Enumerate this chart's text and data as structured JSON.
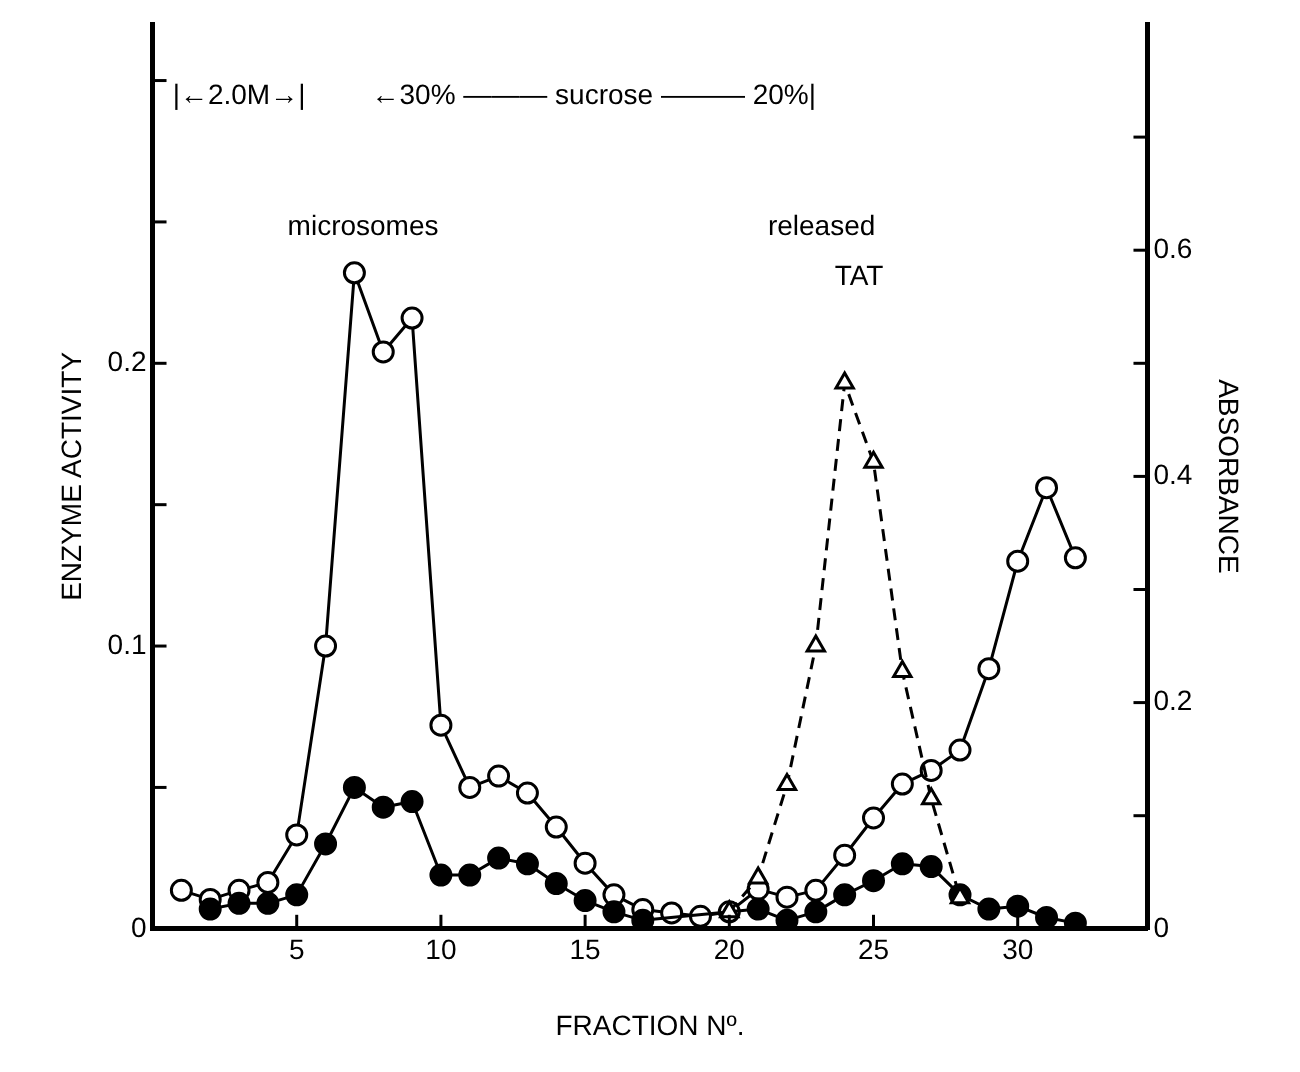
{
  "chart_data": {
    "type": "line",
    "xlabel": "FRACTION Nº.",
    "ylabel": "ENZYME ACTIVITY",
    "y2label": "ABSORBANCE",
    "annotations": [
      "|←2.0M→|",
      "←30% ——— sucrose ——— 20%|",
      "microsomes",
      "released",
      "TAT"
    ],
    "xlim": [
      0,
      34.5
    ],
    "xticks": [
      5,
      10,
      15,
      20,
      25,
      30
    ],
    "ylim": [
      0,
      0.32
    ],
    "yticks": [
      0,
      {
        "value": 0.05,
        "label": null
      },
      0.1,
      {
        "value": 0.15,
        "label": null
      },
      0.2,
      {
        "value": 0.25,
        "label": null
      },
      {
        "value": 0.3,
        "label": null
      }
    ],
    "y2lim": [
      0,
      0.8
    ],
    "y2ticks": [
      0,
      {
        "value": 0.1,
        "label": null
      },
      0.2,
      {
        "value": 0.3,
        "label": null
      },
      0.4,
      {
        "value": 0.5,
        "label": null
      },
      0.6,
      {
        "value": 0.7,
        "label": null
      }
    ],
    "grid": false,
    "legend": false,
    "series": [
      {
        "color": "#ffffff",
        "marker": "circle",
        "line_style": "solid",
        "axis": "y2",
        "x": [
          1,
          2,
          3,
          4,
          5,
          6,
          7,
          8,
          9,
          10,
          11,
          12,
          13,
          14,
          15,
          16,
          17,
          18,
          19,
          20,
          21,
          22,
          23,
          24,
          25,
          26,
          27,
          28,
          29,
          30,
          31,
          32
        ],
        "values": [
          0.034,
          0.026,
          0.034,
          0.041,
          0.083,
          0.25,
          0.58,
          0.51,
          0.54,
          0.18,
          0.125,
          0.135,
          0.12,
          0.09,
          0.058,
          0.03,
          0.017,
          0.014,
          0.011,
          0.015,
          0.035,
          0.028,
          0.034,
          0.065,
          0.098,
          0.128,
          0.14,
          0.158,
          0.23,
          0.325,
          0.39,
          0.328
        ]
      },
      {
        "color": "#000000",
        "marker": "circle",
        "line_style": "solid",
        "x": [
          2,
          3,
          4,
          5,
          6,
          7,
          8,
          9,
          10,
          11,
          12,
          13,
          14,
          15,
          16,
          17,
          21,
          22,
          23,
          24,
          25,
          26,
          27,
          28,
          29,
          30,
          31,
          32
        ],
        "values": [
          0.007,
          0.009,
          0.009,
          0.012,
          0.03,
          0.05,
          0.043,
          0.045,
          0.019,
          0.019,
          0.025,
          0.023,
          0.016,
          0.01,
          0.006,
          0.003,
          0.007,
          0.003,
          0.006,
          0.012,
          0.017,
          0.023,
          0.022,
          0.012,
          0.007,
          0.008,
          0.004,
          0.002
        ]
      },
      {
        "color": "#ffffff",
        "marker": "triangle",
        "line_style": "dashed",
        "x": [
          20,
          21,
          22,
          23,
          24,
          25,
          26,
          27,
          28
        ],
        "values": [
          0.006,
          0.018,
          0.051,
          0.1,
          0.193,
          0.165,
          0.091,
          0.046,
          0.011
        ]
      }
    ]
  }
}
